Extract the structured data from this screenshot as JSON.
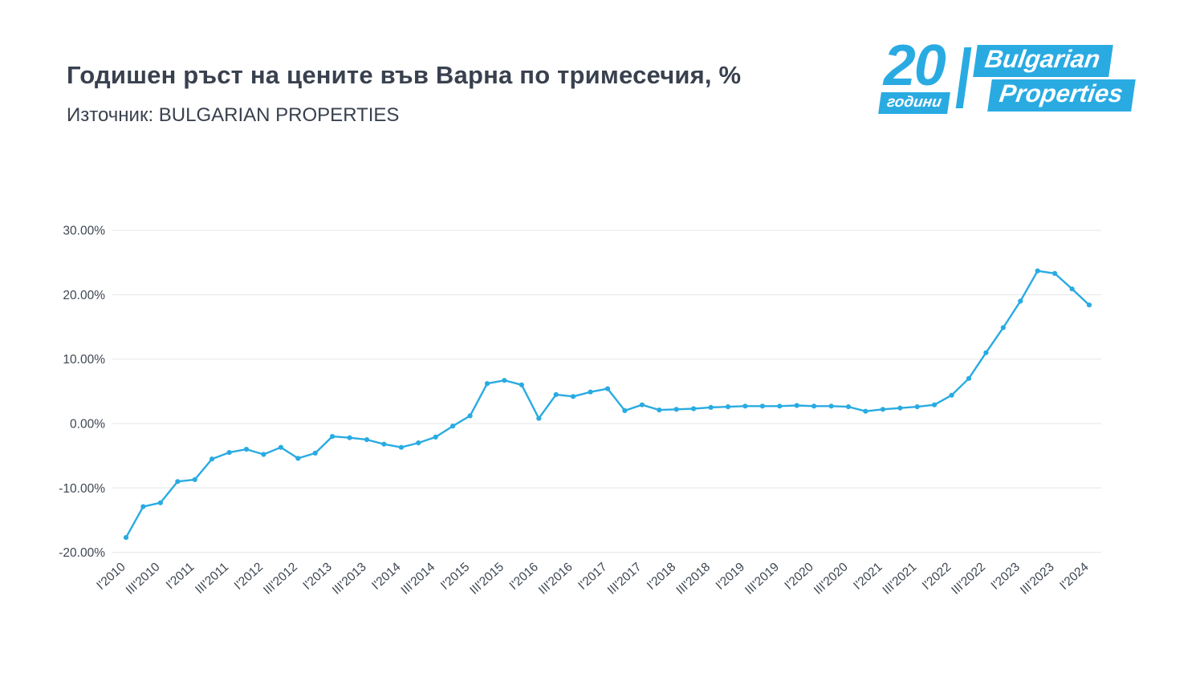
{
  "header": {
    "title": "Годишен ръст на цените във Варна по тримесечия, %",
    "subtitle": "Източник: BULGARIAN PROPERTIES"
  },
  "logo": {
    "years_number": "20",
    "years_text": "години",
    "brand_line1": "Bulgarian",
    "brand_line2": "Properties",
    "color": "#29ABE2"
  },
  "chart_data": {
    "type": "line",
    "title": "Годишен ръст на цените във Варна по тримесечия, %",
    "source": "BULGARIAN PROPERTIES",
    "line_color": "#29ABE2",
    "marker_color": "#29ABE2",
    "grid": true,
    "legend": "none",
    "ylabel": "",
    "xlabel": "",
    "ylim": [
      -20,
      30
    ],
    "ytick_suffix": "%",
    "yticks": [
      {
        "value": 30,
        "label": "30.00%"
      },
      {
        "value": 20,
        "label": "20.00%"
      },
      {
        "value": 10,
        "label": "10.00%"
      },
      {
        "value": 0,
        "label": "0.00%"
      },
      {
        "value": -10,
        "label": "-10.00%"
      },
      {
        "value": -20,
        "label": "-20.00%"
      }
    ],
    "x_tick_every": 2,
    "x": [
      "I'2010",
      "II'2010",
      "III'2010",
      "IV'2010",
      "I'2011",
      "II'2011",
      "III'2011",
      "IV'2011",
      "I'2012",
      "II'2012",
      "III'2012",
      "IV'2012",
      "I'2013",
      "II'2013",
      "III'2013",
      "IV'2013",
      "I'2014",
      "II'2014",
      "III'2014",
      "IV'2014",
      "I'2015",
      "II'2015",
      "III'2015",
      "IV'2015",
      "I'2016",
      "II'2016",
      "III'2016",
      "IV'2016",
      "I'2017",
      "II'2017",
      "III'2017",
      "IV'2017",
      "I'2018",
      "II'2018",
      "III'2018",
      "IV'2018",
      "I'2019",
      "II'2019",
      "III'2019",
      "IV'2019",
      "I'2020",
      "II'2020",
      "III'2020",
      "IV'2020",
      "I'2021",
      "II'2021",
      "III'2021",
      "IV'2021",
      "I'2022",
      "II'2022",
      "III'2022",
      "IV'2022",
      "I'2023",
      "II'2023",
      "III'2023",
      "IV'2023",
      "I'2024"
    ],
    "values": [
      -17.7,
      -12.9,
      -12.3,
      -9.0,
      -8.7,
      -5.5,
      -4.5,
      -4.0,
      -4.8,
      -3.7,
      -5.4,
      -4.6,
      -2.0,
      -2.2,
      -2.5,
      -3.2,
      -3.7,
      -3.0,
      -2.1,
      -0.4,
      1.2,
      6.2,
      6.7,
      6.0,
      0.8,
      4.5,
      4.2,
      4.9,
      5.4,
      2.0,
      2.9,
      2.1,
      2.2,
      2.3,
      2.5,
      2.6,
      2.7,
      2.7,
      2.7,
      2.8,
      2.7,
      2.7,
      2.6,
      1.9,
      2.2,
      2.4,
      2.6,
      2.9,
      4.4,
      7.0,
      11.0,
      14.9,
      19.0,
      23.7,
      23.3,
      20.9,
      18.4
    ]
  }
}
